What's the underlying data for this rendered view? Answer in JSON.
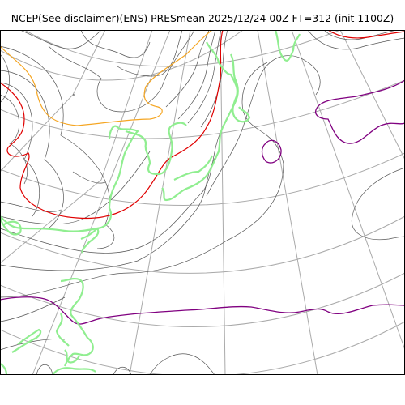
{
  "title": "NCEP(See disclaimer)(ENS) PRESmean 2025/12/24 00Z FT=312 (init 1100Z)",
  "colors": {
    "background": "#ffffff",
    "frame": "#000000",
    "graticule": "#aaaaaa",
    "isobar": "#555555",
    "coastline": "#90ee90",
    "contour_orange": "#f5a623",
    "contour_red": "#e00000",
    "contour_purple": "#800080"
  }
}
